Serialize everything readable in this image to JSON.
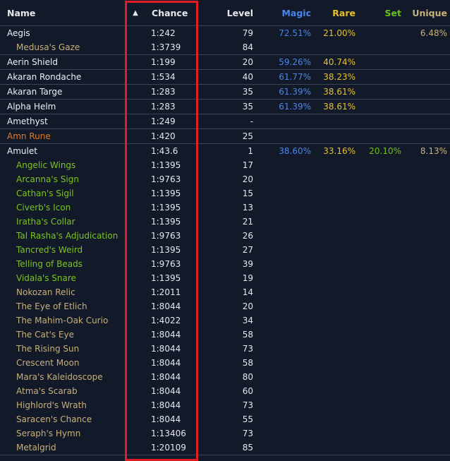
{
  "header": {
    "name": "Name",
    "sort_indicator": "▲",
    "chance": "Chance",
    "level": "Level",
    "magic": "Magic",
    "rare": "Rare",
    "set": "Set",
    "unique": "Unique"
  },
  "colors": {
    "background": "#121a2a",
    "magic": "#4a86e8",
    "rare": "#e8c02a",
    "set": "#6ec01c",
    "unique": "#c8b07a",
    "rune": "#e07a26",
    "highlight": "#e21d24"
  },
  "groups": [
    {
      "rows": [
        {
          "name": "Aegis",
          "type": "normal",
          "chance": "1:242",
          "level": "79",
          "magic": "72.51%",
          "rare": "21.00%",
          "set": "",
          "unique": "6.48%"
        },
        {
          "name": "Medusa's Gaze",
          "type": "unique",
          "child": true,
          "chance": "1:3739",
          "level": "84",
          "magic": "",
          "rare": "",
          "set": "",
          "unique": ""
        }
      ]
    },
    {
      "rows": [
        {
          "name": "Aerin Shield",
          "type": "normal",
          "chance": "1:199",
          "level": "20",
          "magic": "59.26%",
          "rare": "40.74%",
          "set": "",
          "unique": ""
        }
      ]
    },
    {
      "rows": [
        {
          "name": "Akaran Rondache",
          "type": "normal",
          "chance": "1:534",
          "level": "40",
          "magic": "61.77%",
          "rare": "38.23%",
          "set": "",
          "unique": ""
        }
      ]
    },
    {
      "rows": [
        {
          "name": "Akaran Targe",
          "type": "normal",
          "chance": "1:283",
          "level": "35",
          "magic": "61.39%",
          "rare": "38.61%",
          "set": "",
          "unique": ""
        }
      ]
    },
    {
      "rows": [
        {
          "name": "Alpha Helm",
          "type": "normal",
          "chance": "1:283",
          "level": "35",
          "magic": "61.39%",
          "rare": "38.61%",
          "set": "",
          "unique": ""
        }
      ]
    },
    {
      "rows": [
        {
          "name": "Amethyst",
          "type": "normal",
          "chance": "1:249",
          "level": "-",
          "magic": "",
          "rare": "",
          "set": "",
          "unique": ""
        }
      ]
    },
    {
      "rows": [
        {
          "name": "Amn Rune",
          "type": "rune",
          "chance": "1:420",
          "level": "25",
          "magic": "",
          "rare": "",
          "set": "",
          "unique": ""
        }
      ]
    },
    {
      "rows": [
        {
          "name": "Amulet",
          "type": "normal",
          "chance": "1:43.6",
          "level": "1",
          "magic": "38.60%",
          "rare": "33.16%",
          "set": "20.10%",
          "unique": "8.13%"
        },
        {
          "name": "Angelic Wings",
          "type": "set",
          "child": true,
          "chance": "1:1395",
          "level": "17"
        },
        {
          "name": "Arcanna's Sign",
          "type": "set",
          "child": true,
          "chance": "1:9763",
          "level": "20"
        },
        {
          "name": "Cathan's Sigil",
          "type": "set",
          "child": true,
          "chance": "1:1395",
          "level": "15"
        },
        {
          "name": "Civerb's Icon",
          "type": "set",
          "child": true,
          "chance": "1:1395",
          "level": "13"
        },
        {
          "name": "Iratha's Collar",
          "type": "set",
          "child": true,
          "chance": "1:1395",
          "level": "21"
        },
        {
          "name": "Tal Rasha's Adjudication",
          "type": "set",
          "child": true,
          "chance": "1:9763",
          "level": "26"
        },
        {
          "name": "Tancred's Weird",
          "type": "set",
          "child": true,
          "chance": "1:1395",
          "level": "27"
        },
        {
          "name": "Telling of Beads",
          "type": "set",
          "child": true,
          "chance": "1:9763",
          "level": "39"
        },
        {
          "name": "Vidala's Snare",
          "type": "set",
          "child": true,
          "chance": "1:1395",
          "level": "19"
        },
        {
          "name": "Nokozan Relic",
          "type": "unique",
          "child": true,
          "chance": "1:2011",
          "level": "14"
        },
        {
          "name": "The Eye of Etlich",
          "type": "unique",
          "child": true,
          "chance": "1:8044",
          "level": "20"
        },
        {
          "name": "The Mahim-Oak Curio",
          "type": "unique",
          "child": true,
          "chance": "1:4022",
          "level": "34"
        },
        {
          "name": "The Cat's Eye",
          "type": "unique",
          "child": true,
          "chance": "1:8044",
          "level": "58"
        },
        {
          "name": "The Rising Sun",
          "type": "unique",
          "child": true,
          "chance": "1:8044",
          "level": "73"
        },
        {
          "name": "Crescent Moon",
          "type": "unique",
          "child": true,
          "chance": "1:8044",
          "level": "58"
        },
        {
          "name": "Mara's Kaleidoscope",
          "type": "unique",
          "child": true,
          "chance": "1:8044",
          "level": "80"
        },
        {
          "name": "Atma's Scarab",
          "type": "unique",
          "child": true,
          "chance": "1:8044",
          "level": "60"
        },
        {
          "name": "Highlord's Wrath",
          "type": "unique",
          "child": true,
          "chance": "1:8044",
          "level": "73"
        },
        {
          "name": "Saracen's Chance",
          "type": "unique",
          "child": true,
          "chance": "1:8044",
          "level": "55"
        },
        {
          "name": "Seraph's Hymn",
          "type": "unique",
          "child": true,
          "chance": "1:13406",
          "level": "73"
        },
        {
          "name": "Metalgrid",
          "type": "unique",
          "child": true,
          "chance": "1:20109",
          "level": "85"
        }
      ]
    }
  ]
}
